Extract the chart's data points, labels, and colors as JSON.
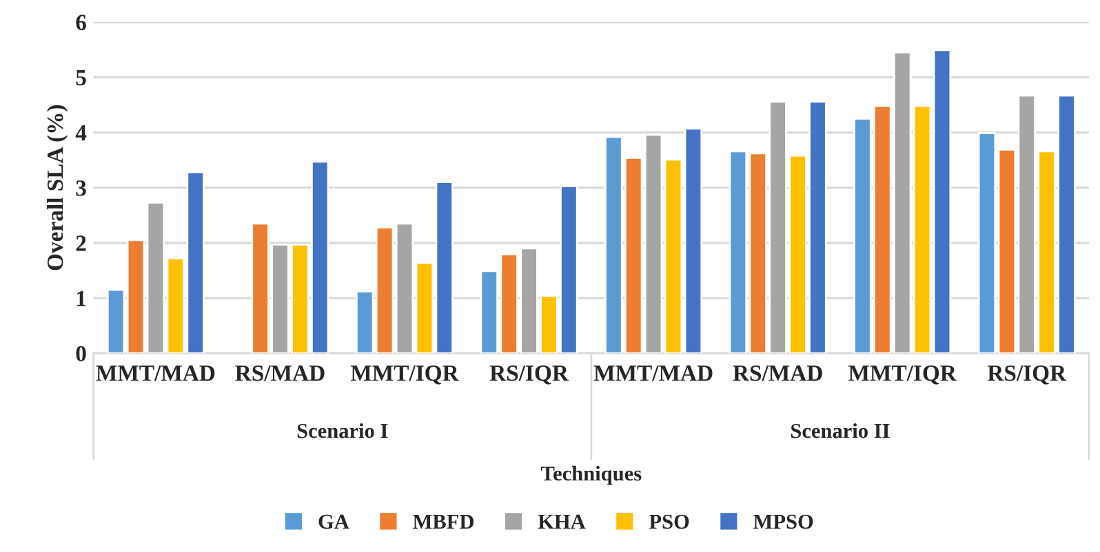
{
  "chart_data": {
    "type": "bar",
    "xlabel": "Techniques",
    "ylabel": "Overall SLA (%)",
    "categories": [
      "MMT/MAD",
      "RS/MAD",
      "MMT/IQR",
      "RS/IQR",
      "MMT/MAD",
      "RS/MAD",
      "MMT/IQR",
      "RS/IQR"
    ],
    "series": [
      {
        "name": "GA",
        "color": "#5b9bd5",
        "values": [
          1.15,
          null,
          1.12,
          1.49,
          3.92,
          3.66,
          4.25,
          3.99
        ]
      },
      {
        "name": "MBFD",
        "color": "#ed7d31",
        "values": [
          2.05,
          2.35,
          2.28,
          1.79,
          3.54,
          3.62,
          4.48,
          3.69
        ]
      },
      {
        "name": "KHA",
        "color": "#a5a5a5",
        "values": [
          2.73,
          1.97,
          2.35,
          1.9,
          3.96,
          4.56,
          5.45,
          4.67
        ]
      },
      {
        "name": "PSO",
        "color": "#ffc000",
        "values": [
          1.72,
          1.97,
          1.64,
          1.04,
          3.51,
          3.58,
          4.48,
          3.66
        ]
      },
      {
        "name": "MPSO",
        "color": "#4472c4",
        "values": [
          3.28,
          3.47,
          3.1,
          3.03,
          4.07,
          4.56,
          5.49,
          4.67
        ]
      }
    ],
    "annotations": [
      "Scenario I",
      "Scenario II"
    ],
    "ylim": [
      0,
      6
    ],
    "yticks": [
      0,
      1,
      2,
      3,
      4,
      5,
      6
    ],
    "grid": "y",
    "legend": "bottom"
  }
}
